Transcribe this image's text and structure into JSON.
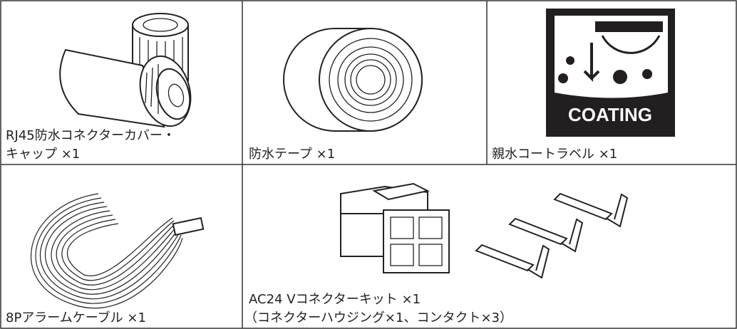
{
  "items": [
    {
      "caption": [
        "RJ45防水コネクターカバー・",
        "キャップ ×1"
      ]
    },
    {
      "caption": [
        "防水テープ ×1"
      ]
    },
    {
      "caption": [
        "親水コートラベル ×1"
      ],
      "image_text": "COATING"
    },
    {
      "caption": [
        "8Pアラームケーブル ×1"
      ]
    },
    {
      "caption": [
        "AC24 Vコネクターキット ×1",
        "（コネクターハウジング×1、コンタクト×3）"
      ]
    }
  ]
}
